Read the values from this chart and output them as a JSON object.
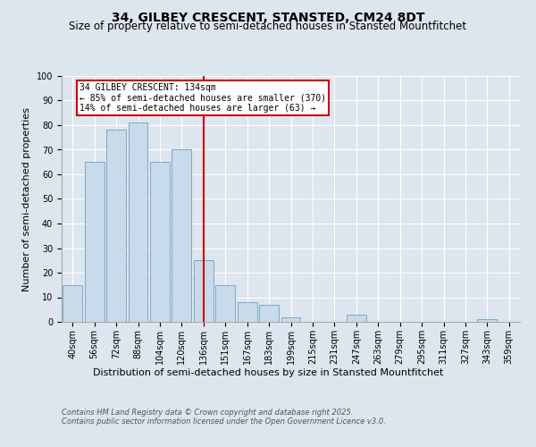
{
  "title": "34, GILBEY CRESCENT, STANSTED, CM24 8DT",
  "subtitle": "Size of property relative to semi-detached houses in Stansted Mountfitchet",
  "xlabel": "Distribution of semi-detached houses by size in Stansted Mountfitchet",
  "ylabel": "Number of semi-detached properties",
  "categories": [
    "40sqm",
    "56sqm",
    "72sqm",
    "88sqm",
    "104sqm",
    "120sqm",
    "136sqm",
    "151sqm",
    "167sqm",
    "183sqm",
    "199sqm",
    "215sqm",
    "231sqm",
    "247sqm",
    "263sqm",
    "279sqm",
    "295sqm",
    "311sqm",
    "327sqm",
    "343sqm",
    "359sqm"
  ],
  "values": [
    15,
    65,
    78,
    81,
    65,
    70,
    25,
    15,
    8,
    7,
    2,
    0,
    0,
    3,
    0,
    0,
    0,
    0,
    0,
    1,
    0
  ],
  "bar_color": "#c9daea",
  "bar_edge_color": "#7aaac8",
  "vline_color": "#cc0000",
  "vline_pos": 6,
  "annotation_box_title": "34 GILBEY CRESCENT: 134sqm",
  "annotation_line1": "← 85% of semi-detached houses are smaller (370)",
  "annotation_line2": "14% of semi-detached houses are larger (63) →",
  "annotation_box_color": "#cc0000",
  "ylim": [
    0,
    100
  ],
  "yticks": [
    0,
    10,
    20,
    30,
    40,
    50,
    60,
    70,
    80,
    90,
    100
  ],
  "background_color": "#dde5ee",
  "plot_bg_color": "#dde5ee",
  "footer1": "Contains HM Land Registry data © Crown copyright and database right 2025.",
  "footer2": "Contains public sector information licensed under the Open Government Licence v3.0.",
  "title_fontsize": 10,
  "subtitle_fontsize": 8.5,
  "xlabel_fontsize": 8,
  "ylabel_fontsize": 8,
  "tick_fontsize": 7,
  "footer_fontsize": 6,
  "annot_fontsize": 7
}
